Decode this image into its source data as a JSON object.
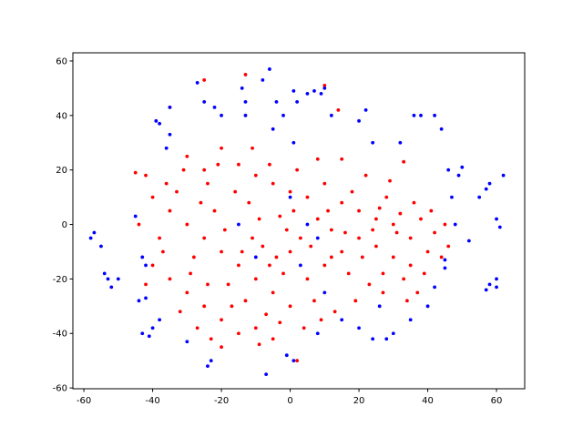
{
  "chart_data": {
    "type": "scatter",
    "xlim": [
      -63.2,
      68.2
    ],
    "ylim": [
      -60.3,
      63
    ],
    "xticks": [
      -60,
      -40,
      -20,
      0,
      20,
      40,
      60
    ],
    "yticks": [
      -60,
      -40,
      -20,
      0,
      20,
      40,
      60
    ],
    "series": [
      {
        "color": "#ff0000",
        "x": [
          -30,
          -25,
          -20,
          -15,
          -10,
          -5,
          0,
          5,
          10,
          15,
          20,
          25,
          30,
          35,
          40,
          -40,
          -35,
          -30,
          -25,
          -20,
          -15,
          -10,
          -5,
          0,
          5,
          10,
          15,
          20,
          25,
          30,
          35,
          -35,
          -30,
          -25,
          -20,
          -15,
          -10,
          -5,
          2,
          0,
          3,
          8,
          12,
          18,
          22,
          28,
          32,
          38,
          42,
          45,
          -42,
          -38,
          -33,
          -28,
          -22,
          -18,
          -12,
          -8,
          -3,
          2,
          7,
          13,
          17,
          23,
          27,
          33,
          37,
          -27,
          -23,
          -17,
          -13,
          -7,
          -2,
          4,
          9,
          -44,
          -40,
          -36,
          -32,
          -26,
          -24,
          -19,
          -16,
          -11,
          -6,
          -1,
          6,
          11,
          16,
          21,
          26,
          31,
          36,
          41,
          46,
          -35,
          -25,
          -13,
          10,
          14,
          -20,
          -9,
          -4,
          1,
          -29,
          -21,
          -14,
          27,
          34,
          29,
          8,
          -3,
          12,
          19,
          39,
          -37,
          -31,
          -9,
          24,
          44,
          -45,
          -42,
          -11,
          15,
          33,
          -6,
          -24
        ],
        "values": [
          25,
          20,
          28,
          22,
          18,
          15,
          12,
          10,
          15,
          8,
          5,
          2,
          0,
          -5,
          -10,
          10,
          5,
          0,
          -5,
          -10,
          -15,
          -20,
          -25,
          -30,
          -20,
          -15,
          -10,
          -5,
          -8,
          -12,
          -15,
          -20,
          -25,
          -30,
          -35,
          -40,
          -38,
          -42,
          -50,
          -10,
          -5,
          2,
          -2,
          12,
          18,
          10,
          4,
          2,
          -3,
          0,
          18,
          -5,
          12,
          -12,
          5,
          -22,
          8,
          -8,
          3,
          20,
          -28,
          -32,
          -18,
          -22,
          -18,
          -20,
          -25,
          -38,
          -42,
          -30,
          -28,
          -33,
          -18,
          -38,
          -35,
          0,
          -15,
          15,
          -32,
          8,
          15,
          -2,
          12,
          -5,
          22,
          -2,
          -8,
          5,
          -3,
          -12,
          6,
          -3,
          8,
          5,
          -8,
          43,
          53,
          55,
          51,
          42,
          -45,
          -44,
          -12,
          5,
          -18,
          22,
          -10,
          -25,
          -28,
          16,
          24,
          -36,
          -12,
          -28,
          -18,
          -10,
          20,
          2,
          -2,
          -12,
          19,
          -22,
          28,
          24,
          23,
          -15,
          -22
        ]
      },
      {
        "color": "#0000ff",
        "x": [
          -58,
          -57,
          -55,
          -54,
          -53,
          -52,
          -50,
          -44,
          -42,
          -43,
          -41,
          -40,
          -45,
          -43,
          -42,
          -35,
          -36,
          -35,
          -27,
          -25,
          -22,
          -20,
          -14,
          -13,
          -13,
          -8,
          -6,
          -5,
          -4,
          -2,
          1,
          1,
          2,
          5,
          7,
          9,
          12,
          10,
          0,
          3,
          5,
          8,
          -10,
          -15,
          10,
          8,
          15,
          20,
          24,
          26,
          -24,
          -23,
          -7,
          -1,
          1,
          -30,
          -38,
          20,
          22,
          24,
          32,
          36,
          38,
          42,
          44,
          46,
          50,
          49,
          47,
          48,
          52,
          45,
          45,
          58,
          60,
          57,
          60,
          60,
          61,
          62,
          57,
          58,
          55,
          40,
          35,
          30,
          28,
          42,
          -38,
          -39
        ],
        "values": [
          -5,
          -3,
          -8,
          -18,
          -20,
          -23,
          -20,
          -28,
          -27,
          -40,
          -41,
          -38,
          3,
          -12,
          -15,
          33,
          28,
          43,
          52,
          45,
          43,
          40,
          50,
          45,
          40,
          53,
          57,
          35,
          45,
          40,
          30,
          49,
          45,
          48,
          49,
          48,
          40,
          50,
          10,
          -15,
          0,
          -5,
          -12,
          0,
          -25,
          -40,
          -35,
          -38,
          -42,
          -30,
          -52,
          -50,
          -55,
          -48,
          -50,
          -43,
          -35,
          38,
          42,
          30,
          30,
          40,
          40,
          40,
          35,
          20,
          21,
          18,
          10,
          0,
          -6,
          -13,
          -16,
          -22,
          -20,
          -24,
          -23,
          2,
          -1,
          18,
          13,
          15,
          10,
          -30,
          -35,
          -40,
          -42,
          -23,
          37,
          38
        ]
      }
    ]
  }
}
